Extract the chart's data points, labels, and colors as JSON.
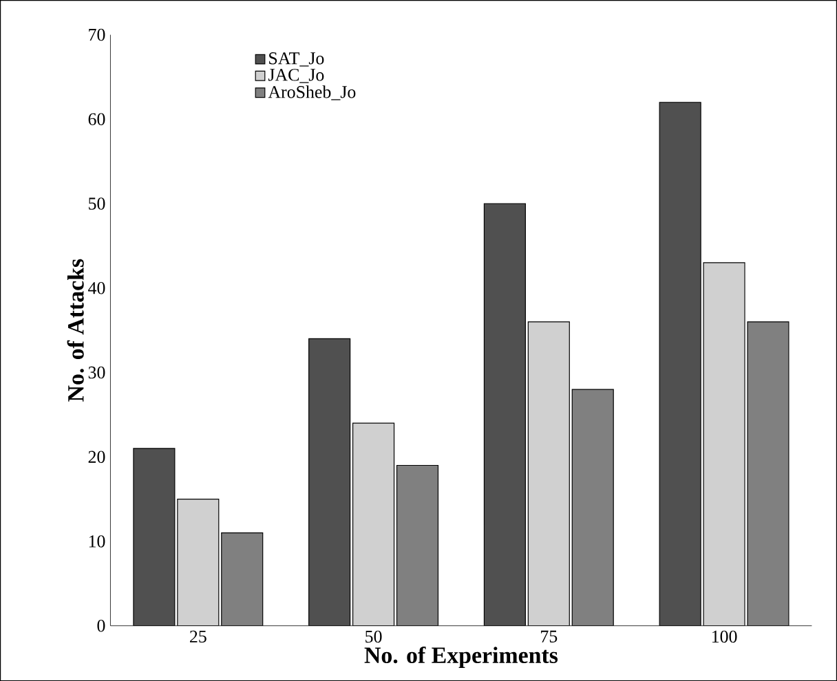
{
  "chart_data": {
    "type": "bar",
    "xlabel": "No. of Experiments",
    "ylabel": "No. of Attacks",
    "categories": [
      "25",
      "50",
      "75",
      "100"
    ],
    "series": [
      {
        "name": "SAT_Jo",
        "color": "#505050",
        "values": [
          21,
          34,
          50,
          62
        ]
      },
      {
        "name": "JAC_Jo",
        "color": "#d0d0d0",
        "values": [
          15,
          24,
          36,
          43
        ]
      },
      {
        "name": "AroSheb_Jo",
        "color": "#808080",
        "values": [
          11,
          19,
          28,
          36
        ]
      }
    ],
    "ylim": [
      0,
      70
    ],
    "yticks": [
      0,
      10,
      20,
      30,
      40,
      50,
      60,
      70
    ],
    "grid": false,
    "legend": "top left"
  }
}
